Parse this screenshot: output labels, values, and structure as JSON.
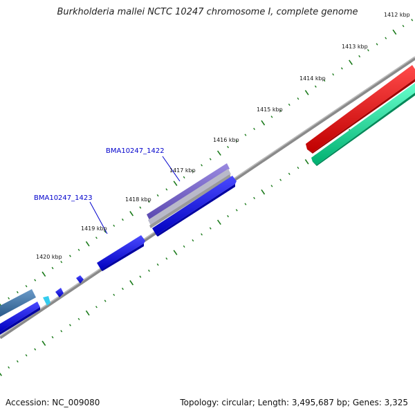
{
  "title": "Burkholderia mallei NCTC 10247 chromosome I, complete genome",
  "accession": "Accession: NC_009080",
  "summary": "Topology: circular; Length: 3,495,687 bp; Genes: 3,325",
  "ticks": [
    {
      "label": "1412 kbp"
    },
    {
      "label": "1413 kbp"
    },
    {
      "label": "1414 kbp"
    },
    {
      "label": "1415 kbp"
    },
    {
      "label": "1416 kbp"
    },
    {
      "label": "1417 kbp"
    },
    {
      "label": "1418 kbp"
    },
    {
      "label": "1419 kbp"
    },
    {
      "label": "1420 kbp"
    }
  ],
  "gene_labels": [
    {
      "label": "BMA10247_1422"
    },
    {
      "label": "BMA10247_1423"
    }
  ],
  "colors": {
    "backbone": "#7a7a7a",
    "tick": "#1a7a1a",
    "gene_blue": "#0000ee",
    "gene_purple": "#7766cc",
    "gene_red": "#ee0000",
    "gene_teal": "#11dd99",
    "gene_steel": "#3b6ea5",
    "gene_cyan": "#33ccee",
    "label_line": "#0000cc"
  }
}
